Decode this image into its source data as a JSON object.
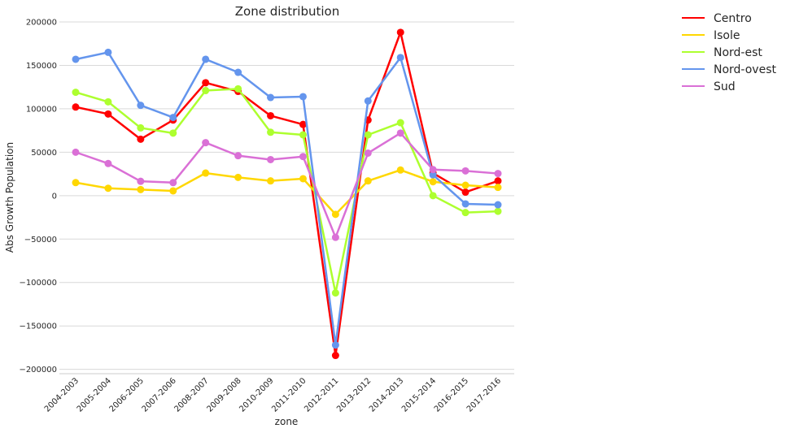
{
  "chart_data": {
    "type": "line",
    "title": "Zone distribution",
    "xlabel": "zone",
    "ylabel": "Abs Growth Population",
    "categories": [
      "2004-2003",
      "2005-2004",
      "2006-2005",
      "2007-2006",
      "2008-2007",
      "2009-2008",
      "2010-2009",
      "2011-2010",
      "2012-2011",
      "2013-2012",
      "2014-2013",
      "2015-2014",
      "2016-2015",
      "2017-2016"
    ],
    "ylim": [
      -205000,
      200000
    ],
    "yticks": [
      200000,
      150000,
      100000,
      50000,
      0,
      -50000,
      -100000,
      -150000,
      -200000
    ],
    "ytick_labels": [
      "200000",
      "150000",
      "100000",
      "50000",
      "0",
      "−50000",
      "−100000",
      "−150000",
      "−200000"
    ],
    "grid": true,
    "legend_position": "outside-top-right",
    "series": [
      {
        "name": "Centro",
        "color": "#ff0000",
        "values": [
          102000,
          94000,
          65000,
          87000,
          130000,
          120000,
          92000,
          82000,
          -184000,
          87000,
          188000,
          26000,
          4000,
          17000
        ]
      },
      {
        "name": "Isole",
        "color": "#ffd700",
        "values": [
          15000,
          8500,
          7000,
          5500,
          26000,
          21000,
          17000,
          19500,
          -21500,
          17000,
          29500,
          16000,
          12000,
          9500
        ]
      },
      {
        "name": "Nord-est",
        "color": "#adff2f",
        "values": [
          119000,
          108000,
          78000,
          72000,
          121000,
          123000,
          73000,
          70000,
          -112000,
          70000,
          84000,
          0,
          -19500,
          -18000
        ]
      },
      {
        "name": "Nord-ovest",
        "color": "#6495ed",
        "values": [
          157000,
          165000,
          104000,
          90000,
          157000,
          142000,
          113000,
          114000,
          -172000,
          109000,
          159000,
          24000,
          -9500,
          -10500
        ]
      },
      {
        "name": "Sud",
        "color": "#da70d6",
        "values": [
          50000,
          37000,
          16500,
          15000,
          61000,
          46000,
          41500,
          45000,
          -48000,
          49000,
          72000,
          30000,
          28500,
          25500
        ]
      }
    ]
  }
}
